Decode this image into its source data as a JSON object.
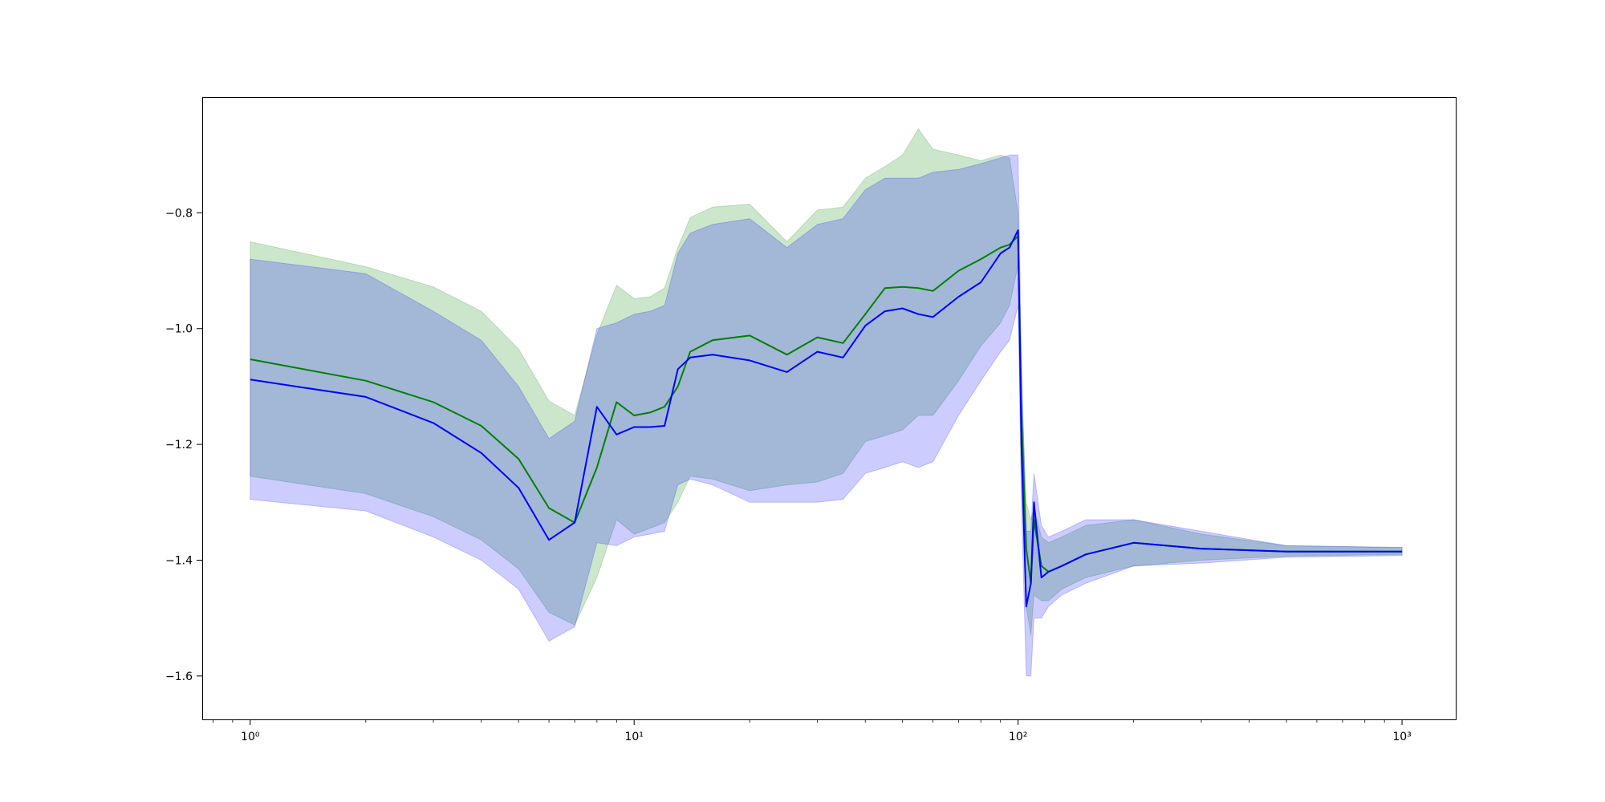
{
  "chart_data": {
    "type": "line",
    "xscale": "log",
    "xlim": [
      0.75,
      1380
    ],
    "ylim": [
      -1.675,
      -0.6
    ],
    "grid": false,
    "legend": "none",
    "title": "",
    "xlabel": "",
    "ylabel": "",
    "x_ticks": [
      {
        "value": 1,
        "label": "10⁰"
      },
      {
        "value": 10,
        "label": "10¹"
      },
      {
        "value": 100,
        "label": "10²"
      },
      {
        "value": 1000,
        "label": "10³"
      }
    ],
    "y_ticks": [
      {
        "value": -0.8,
        "label": "−0.8"
      },
      {
        "value": -1.0,
        "label": "−1.0"
      },
      {
        "value": -1.2,
        "label": "−1.2"
      },
      {
        "value": -1.4,
        "label": "−1.4"
      },
      {
        "value": -1.6,
        "label": "−1.6"
      }
    ],
    "series": [
      {
        "color": "#008000",
        "band_color": "#008000",
        "band_opacity": 0.2,
        "x": [
          1,
          2,
          3,
          4,
          5,
          6,
          7,
          8,
          9,
          10,
          11,
          12,
          13,
          14,
          16,
          20,
          25,
          30,
          35,
          40,
          45,
          50,
          55,
          60,
          70,
          80,
          90,
          95,
          100,
          102,
          105,
          108,
          110,
          115,
          120,
          130,
          150,
          200,
          300,
          500,
          1000
        ],
        "y": [
          -1.053,
          -1.09,
          -1.127,
          -1.168,
          -1.225,
          -1.31,
          -1.335,
          -1.24,
          -1.127,
          -1.15,
          -1.145,
          -1.135,
          -1.1,
          -1.04,
          -1.02,
          -1.012,
          -1.045,
          -1.015,
          -1.025,
          -0.975,
          -0.93,
          -0.928,
          -0.93,
          -0.935,
          -0.9,
          -0.88,
          -0.86,
          -0.855,
          -0.84,
          -1.15,
          -1.38,
          -1.44,
          -1.33,
          -1.41,
          -1.42,
          -1.41,
          -1.39,
          -1.37,
          -1.38,
          -1.385,
          -1.385
        ],
        "upper": [
          -0.85,
          -0.893,
          -0.928,
          -0.97,
          -1.035,
          -1.125,
          -1.15,
          -1.01,
          -0.925,
          -0.948,
          -0.945,
          -0.93,
          -0.86,
          -0.808,
          -0.79,
          -0.785,
          -0.85,
          -0.795,
          -0.79,
          -0.74,
          -0.72,
          -0.7,
          -0.655,
          -0.69,
          -0.7,
          -0.71,
          -0.7,
          -0.705,
          -0.8,
          -1.1,
          -1.3,
          -1.33,
          -1.31,
          -1.36,
          -1.37,
          -1.36,
          -1.34,
          -1.33,
          -1.355,
          -1.375,
          -1.378
        ],
        "lower": [
          -1.255,
          -1.285,
          -1.325,
          -1.365,
          -1.415,
          -1.49,
          -1.512,
          -1.43,
          -1.33,
          -1.355,
          -1.345,
          -1.335,
          -1.3,
          -1.255,
          -1.26,
          -1.28,
          -1.27,
          -1.265,
          -1.25,
          -1.195,
          -1.185,
          -1.175,
          -1.15,
          -1.15,
          -1.09,
          -1.03,
          -0.99,
          -0.96,
          -0.89,
          -1.2,
          -1.48,
          -1.53,
          -1.46,
          -1.47,
          -1.47,
          -1.45,
          -1.43,
          -1.41,
          -1.4,
          -1.393,
          -1.39
        ]
      },
      {
        "color": "#0000ff",
        "band_color": "#0000ff",
        "band_opacity": 0.2,
        "x": [
          1,
          2,
          3,
          4,
          5,
          6,
          7,
          8,
          9,
          10,
          11,
          12,
          13,
          14,
          16,
          20,
          25,
          30,
          35,
          40,
          45,
          50,
          55,
          60,
          70,
          80,
          90,
          95,
          100,
          102,
          105,
          108,
          110,
          115,
          120,
          130,
          150,
          200,
          300,
          500,
          1000
        ],
        "y": [
          -1.088,
          -1.118,
          -1.163,
          -1.215,
          -1.275,
          -1.365,
          -1.335,
          -1.135,
          -1.183,
          -1.17,
          -1.17,
          -1.168,
          -1.07,
          -1.05,
          -1.045,
          -1.055,
          -1.075,
          -1.04,
          -1.05,
          -0.995,
          -0.97,
          -0.965,
          -0.975,
          -0.98,
          -0.945,
          -0.92,
          -0.87,
          -0.86,
          -0.83,
          -1.2,
          -1.48,
          -1.44,
          -1.3,
          -1.43,
          -1.42,
          -1.41,
          -1.39,
          -1.37,
          -1.38,
          -1.385,
          -1.385
        ],
        "upper": [
          -0.88,
          -0.905,
          -0.97,
          -1.02,
          -1.1,
          -1.19,
          -1.16,
          -1.0,
          -0.99,
          -0.975,
          -0.97,
          -0.96,
          -0.87,
          -0.835,
          -0.82,
          -0.81,
          -0.86,
          -0.82,
          -0.81,
          -0.76,
          -0.74,
          -0.74,
          -0.74,
          -0.73,
          -0.725,
          -0.715,
          -0.705,
          -0.7,
          -0.7,
          -1.05,
          -1.35,
          -1.35,
          -1.25,
          -1.34,
          -1.36,
          -1.35,
          -1.33,
          -1.33,
          -1.35,
          -1.375,
          -1.378
        ],
        "lower": [
          -1.295,
          -1.315,
          -1.36,
          -1.4,
          -1.45,
          -1.54,
          -1.515,
          -1.37,
          -1.375,
          -1.36,
          -1.355,
          -1.35,
          -1.27,
          -1.26,
          -1.27,
          -1.3,
          -1.3,
          -1.3,
          -1.295,
          -1.25,
          -1.24,
          -1.23,
          -1.24,
          -1.23,
          -1.15,
          -1.09,
          -1.04,
          -1.02,
          -0.96,
          -1.3,
          -1.6,
          -1.6,
          -1.5,
          -1.5,
          -1.48,
          -1.46,
          -1.44,
          -1.41,
          -1.405,
          -1.395,
          -1.392
        ]
      }
    ]
  }
}
